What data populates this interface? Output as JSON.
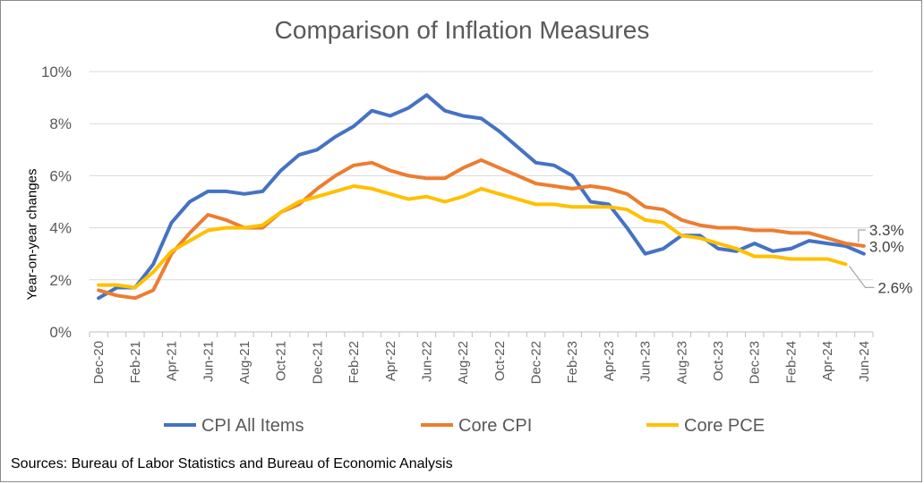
{
  "chart_data": {
    "type": "line",
    "title": "Comparison of Inflation Measures",
    "ylabel": "Year-on-year changes",
    "xlabel": "",
    "ylim": [
      0,
      10
    ],
    "yticks": [
      "0%",
      "2%",
      "4%",
      "6%",
      "8%",
      "10%"
    ],
    "ytick_values": [
      0,
      2,
      4,
      6,
      8,
      10
    ],
    "grid": true,
    "legend": "bottom",
    "x": [
      "Dec-20",
      "Jan-21",
      "Feb-21",
      "Mar-21",
      "Apr-21",
      "May-21",
      "Jun-21",
      "Jul-21",
      "Aug-21",
      "Sep-21",
      "Oct-21",
      "Nov-21",
      "Dec-21",
      "Jan-22",
      "Feb-22",
      "Mar-22",
      "Apr-22",
      "May-22",
      "Jun-22",
      "Jul-22",
      "Aug-22",
      "Sep-22",
      "Oct-22",
      "Nov-22",
      "Dec-22",
      "Jan-23",
      "Feb-23",
      "Mar-23",
      "Apr-23",
      "May-23",
      "Jun-23",
      "Jul-23",
      "Aug-23",
      "Sep-23",
      "Oct-23",
      "Nov-23",
      "Dec-23",
      "Jan-24",
      "Feb-24",
      "Mar-24",
      "Apr-24",
      "May-24",
      "Jun-24"
    ],
    "xtick_labels": [
      "Dec-20",
      "Feb-21",
      "Apr-21",
      "Jun-21",
      "Aug-21",
      "Oct-21",
      "Dec-21",
      "Feb-22",
      "Apr-22",
      "Jun-22",
      "Aug-22",
      "Oct-22",
      "Dec-22",
      "Feb-23",
      "Apr-23",
      "Jun-23",
      "Aug-23",
      "Oct-23",
      "Dec-23",
      "Feb-24",
      "Apr-24",
      "Jun-24"
    ],
    "series": [
      {
        "name": "CPI All Items",
        "color": "#4472C4",
        "values": [
          1.3,
          1.7,
          1.7,
          2.6,
          4.2,
          5.0,
          5.4,
          5.4,
          5.3,
          5.4,
          6.2,
          6.8,
          7.0,
          7.5,
          7.9,
          8.5,
          8.3,
          8.6,
          9.1,
          8.5,
          8.3,
          8.2,
          7.7,
          7.1,
          6.5,
          6.4,
          6.0,
          5.0,
          4.9,
          4.0,
          3.0,
          3.2,
          3.7,
          3.7,
          3.2,
          3.1,
          3.4,
          3.1,
          3.2,
          3.5,
          3.4,
          3.3,
          3.0
        ]
      },
      {
        "name": "Core CPI",
        "color": "#ED7D31",
        "values": [
          1.6,
          1.4,
          1.3,
          1.6,
          3.0,
          3.8,
          4.5,
          4.3,
          4.0,
          4.0,
          4.6,
          4.9,
          5.5,
          6.0,
          6.4,
          6.5,
          6.2,
          6.0,
          5.9,
          5.9,
          6.3,
          6.6,
          6.3,
          6.0,
          5.7,
          5.6,
          5.5,
          5.6,
          5.5,
          5.3,
          4.8,
          4.7,
          4.3,
          4.1,
          4.0,
          4.0,
          3.9,
          3.9,
          3.8,
          3.8,
          3.6,
          3.4,
          3.3
        ]
      },
      {
        "name": "Core PCE",
        "color": "#FFC000",
        "values": [
          1.8,
          1.8,
          1.7,
          2.3,
          3.1,
          3.5,
          3.9,
          4.0,
          4.0,
          4.1,
          4.6,
          5.0,
          5.2,
          5.4,
          5.6,
          5.5,
          5.3,
          5.1,
          5.2,
          5.0,
          5.2,
          5.5,
          5.3,
          5.1,
          4.9,
          4.9,
          4.8,
          4.8,
          4.8,
          4.7,
          4.3,
          4.2,
          3.7,
          3.6,
          3.4,
          3.2,
          2.9,
          2.9,
          2.8,
          2.8,
          2.8,
          2.6,
          null
        ]
      }
    ],
    "annotations": [
      "3.3%",
      "3.0%",
      "2.6%"
    ]
  },
  "source": "Sources: Bureau of Labor Statistics and Bureau of Economic Analysis"
}
